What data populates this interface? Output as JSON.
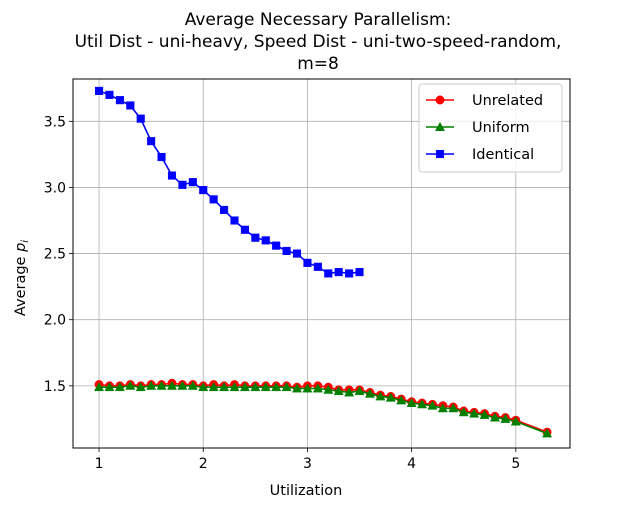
{
  "chart_data": {
    "type": "line",
    "title_lines": [
      "Average Necessary Parallelism:",
      "Util Dist - uni-heavy, Speed Dist - uni-two-speed-random,",
      "m=8"
    ],
    "xlabel": "Utilization",
    "ylabel_main": "Average ",
    "ylabel_var": "p",
    "ylabel_sub": "i",
    "xlim": [
      0.75,
      5.52
    ],
    "ylim": [
      1.03,
      3.82
    ],
    "xticks": [
      1,
      2,
      3,
      4,
      5
    ],
    "yticks": [
      1.5,
      2.0,
      2.5,
      3.0,
      3.5
    ],
    "xtick_labels": [
      "1",
      "2",
      "3",
      "4",
      "5"
    ],
    "ytick_labels": [
      "1.5",
      "2.0",
      "2.5",
      "3.0",
      "3.5"
    ],
    "grid": true,
    "legend_position": "top-right",
    "series": [
      {
        "name": "Unrelated",
        "color": "#ff0000",
        "marker": "circle",
        "x": [
          1.0,
          1.1,
          1.2,
          1.3,
          1.4,
          1.5,
          1.6,
          1.7,
          1.8,
          1.9,
          2.0,
          2.1,
          2.2,
          2.3,
          2.4,
          2.5,
          2.6,
          2.7,
          2.8,
          2.9,
          3.0,
          3.1,
          3.2,
          3.3,
          3.4,
          3.5,
          3.6,
          3.7,
          3.8,
          3.9,
          4.0,
          4.1,
          4.2,
          4.3,
          4.4,
          4.5,
          4.6,
          4.7,
          4.8,
          4.9,
          5.0,
          5.3
        ],
        "y": [
          1.51,
          1.5,
          1.5,
          1.51,
          1.5,
          1.51,
          1.51,
          1.52,
          1.51,
          1.51,
          1.5,
          1.51,
          1.5,
          1.51,
          1.5,
          1.5,
          1.5,
          1.5,
          1.5,
          1.49,
          1.5,
          1.5,
          1.49,
          1.47,
          1.47,
          1.47,
          1.45,
          1.43,
          1.42,
          1.4,
          1.38,
          1.37,
          1.36,
          1.35,
          1.34,
          1.31,
          1.3,
          1.29,
          1.27,
          1.26,
          1.24,
          1.15
        ]
      },
      {
        "name": "Uniform",
        "color": "#008000",
        "marker": "triangle",
        "x": [
          1.0,
          1.1,
          1.2,
          1.3,
          1.4,
          1.5,
          1.6,
          1.7,
          1.8,
          1.9,
          2.0,
          2.1,
          2.2,
          2.3,
          2.4,
          2.5,
          2.6,
          2.7,
          2.8,
          2.9,
          3.0,
          3.1,
          3.2,
          3.3,
          3.4,
          3.5,
          3.6,
          3.7,
          3.8,
          3.9,
          4.0,
          4.1,
          4.2,
          4.3,
          4.4,
          4.5,
          4.6,
          4.7,
          4.8,
          4.9,
          5.0,
          5.3
        ],
        "y": [
          1.49,
          1.49,
          1.49,
          1.5,
          1.49,
          1.5,
          1.5,
          1.5,
          1.5,
          1.5,
          1.49,
          1.49,
          1.49,
          1.49,
          1.49,
          1.49,
          1.49,
          1.49,
          1.49,
          1.48,
          1.48,
          1.48,
          1.47,
          1.46,
          1.45,
          1.46,
          1.44,
          1.42,
          1.41,
          1.39,
          1.37,
          1.36,
          1.35,
          1.33,
          1.33,
          1.3,
          1.29,
          1.28,
          1.26,
          1.25,
          1.23,
          1.14
        ]
      },
      {
        "name": "Identical",
        "color": "#0000ff",
        "marker": "square",
        "x": [
          1.0,
          1.1,
          1.2,
          1.3,
          1.4,
          1.5,
          1.6,
          1.7,
          1.8,
          1.9,
          2.0,
          2.1,
          2.2,
          2.3,
          2.4,
          2.5,
          2.6,
          2.7,
          2.8,
          2.9,
          3.0,
          3.1,
          3.2,
          3.3,
          3.4,
          3.5
        ],
        "y": [
          3.73,
          3.7,
          3.66,
          3.62,
          3.52,
          3.35,
          3.23,
          3.09,
          3.02,
          3.04,
          2.98,
          2.91,
          2.83,
          2.75,
          2.68,
          2.62,
          2.6,
          2.56,
          2.52,
          2.5,
          2.43,
          2.4,
          2.35,
          2.36,
          2.35,
          2.36
        ]
      }
    ]
  }
}
